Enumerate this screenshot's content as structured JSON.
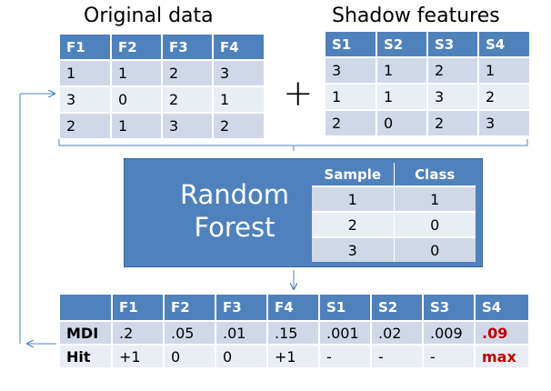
{
  "original": {
    "title": "Original data",
    "headers": [
      "F1",
      "F2",
      "F3",
      "F4"
    ],
    "rows": [
      [
        "1",
        "1",
        "2",
        "3"
      ],
      [
        "3",
        "0",
        "2",
        "1"
      ],
      [
        "2",
        "1",
        "3",
        "2"
      ]
    ]
  },
  "plus_sign": "+",
  "shadow": {
    "title": "Shadow features",
    "headers": [
      "S1",
      "S2",
      "S3",
      "S4"
    ],
    "rows": [
      [
        "3",
        "1",
        "2",
        "1"
      ],
      [
        "1",
        "1",
        "3",
        "2"
      ],
      [
        "2",
        "0",
        "2",
        "3"
      ]
    ]
  },
  "forest": {
    "title_line1": "Random",
    "title_line2": "Forest",
    "headers": [
      "Sample",
      "Class"
    ],
    "rows": [
      [
        "1",
        "1"
      ],
      [
        "2",
        "0"
      ],
      [
        "3",
        "0"
      ]
    ]
  },
  "result": {
    "headers": [
      "",
      "F1",
      "F2",
      "F3",
      "F4",
      "S1",
      "S2",
      "S3",
      "S4"
    ],
    "rows": [
      {
        "label": "MDI",
        "values": [
          ".2",
          ".05",
          ".01",
          ".15",
          ".001",
          ".02",
          ".009",
          ".09"
        ]
      },
      {
        "label": "Hit",
        "values": [
          "+1",
          "0",
          "0",
          "+1",
          "-",
          "-",
          "-",
          "max"
        ]
      }
    ]
  },
  "colors": {
    "header_blue": "#4f81bd",
    "row_dark": "#d0d8e8",
    "row_light": "#e9edf4",
    "highlight_red": "#c00000"
  }
}
